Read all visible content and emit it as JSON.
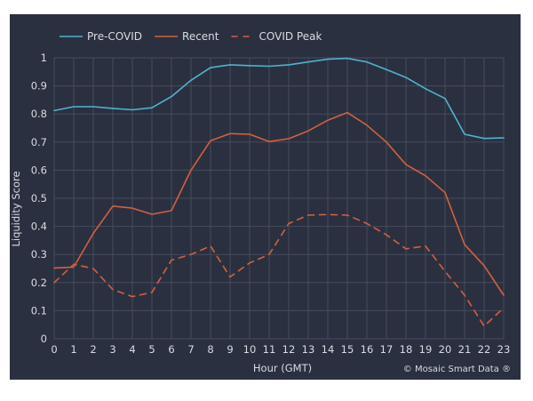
{
  "chart_data": {
    "type": "line",
    "xlabel": "Hour (GMT)",
    "ylabel": "Liquidity Score",
    "x": [
      0,
      1,
      2,
      3,
      4,
      5,
      6,
      7,
      8,
      9,
      10,
      11,
      12,
      13,
      14,
      15,
      16,
      17,
      18,
      19,
      20,
      21,
      22,
      23
    ],
    "x_tick_labels": [
      "0",
      "1",
      "2",
      "3",
      "4",
      "5",
      "6",
      "7",
      "8",
      "9",
      "10",
      "11",
      "12",
      "13",
      "14",
      "15",
      "16",
      "17",
      "18",
      "19",
      "20",
      "21",
      "22",
      "23"
    ],
    "ylim": [
      0,
      1
    ],
    "y_ticks": [
      0,
      0.1,
      0.2,
      0.3,
      0.4,
      0.5,
      0.6,
      0.7,
      0.8,
      0.9,
      1
    ],
    "y_tick_labels": [
      "0",
      "0.1",
      "0.2",
      "0.3",
      "0.4",
      "0.5",
      "0.6",
      "0.7",
      "0.8",
      "0.9",
      "1"
    ],
    "grid": true,
    "legend_position": "top-left",
    "credit": "© Mosaic Smart Data ®",
    "series": [
      {
        "name": "Pre-COVID",
        "color": "#4fb3cf",
        "dash": "solid",
        "values": [
          0.812,
          0.826,
          0.826,
          0.82,
          0.815,
          0.822,
          0.862,
          0.92,
          0.965,
          0.975,
          0.972,
          0.97,
          0.975,
          0.985,
          0.995,
          0.998,
          0.985,
          0.958,
          0.93,
          0.89,
          0.855,
          0.728,
          0.713,
          0.715
        ]
      },
      {
        "name": "Recent",
        "color": "#d2603f",
        "dash": "solid",
        "values": [
          0.252,
          0.255,
          0.375,
          0.472,
          0.465,
          0.443,
          0.456,
          0.6,
          0.705,
          0.73,
          0.728,
          0.702,
          0.712,
          0.74,
          0.778,
          0.805,
          0.76,
          0.7,
          0.62,
          0.58,
          0.52,
          0.335,
          0.26,
          0.155
        ]
      },
      {
        "name": "COVID Peak",
        "color": "#d2603f",
        "dash": "dashed",
        "values": [
          0.2,
          0.265,
          0.25,
          0.175,
          0.15,
          0.165,
          0.28,
          0.3,
          0.33,
          0.22,
          0.27,
          0.3,
          0.41,
          0.44,
          0.442,
          0.44,
          0.41,
          0.37,
          0.32,
          0.33,
          0.24,
          0.155,
          0.045,
          0.11
        ]
      }
    ]
  }
}
